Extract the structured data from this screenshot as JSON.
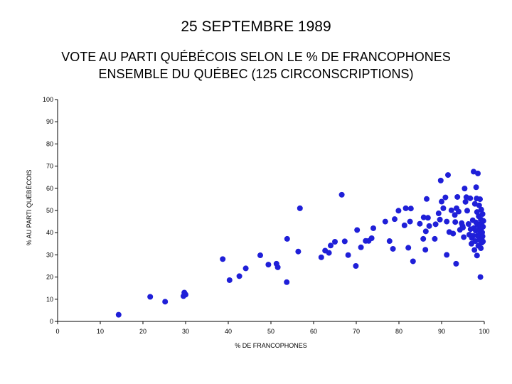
{
  "page": {
    "heading": "25 SEPTEMBRE 1989"
  },
  "chart_data": {
    "type": "scatter",
    "title_line1": "VOTE AU PARTI QUÉBÉCOIS SELON LE % DE FRANCOPHONES",
    "title_line2": "ENSEMBLE DU QUÉBEC (125 CIRCONSCRIPTIONS)",
    "xlabel": "% DE FRANCOPHONES",
    "ylabel": "% AU PARTI QUÉBÉCOIS",
    "xlim": [
      0,
      100
    ],
    "ylim": [
      0,
      100
    ],
    "xticks": [
      0,
      10,
      20,
      30,
      40,
      50,
      60,
      70,
      80,
      90,
      100
    ],
    "yticks": [
      0,
      10,
      20,
      30,
      40,
      50,
      60,
      70,
      80,
      90,
      100
    ],
    "grid": false,
    "marker_color": "#1f1fd8",
    "points": [
      [
        14.3,
        3.0
      ],
      [
        21.7,
        11.1
      ],
      [
        25.2,
        8.9
      ],
      [
        29.5,
        11.4
      ],
      [
        29.7,
        13.0
      ],
      [
        30.0,
        12.1
      ],
      [
        38.7,
        28.1
      ],
      [
        40.3,
        18.6
      ],
      [
        42.6,
        20.4
      ],
      [
        44.1,
        23.9
      ],
      [
        47.5,
        29.8
      ],
      [
        49.4,
        25.6
      ],
      [
        51.3,
        26.0
      ],
      [
        51.6,
        24.4
      ],
      [
        53.7,
        17.7
      ],
      [
        53.8,
        37.2
      ],
      [
        56.4,
        31.5
      ],
      [
        56.8,
        51.0
      ],
      [
        61.8,
        28.9
      ],
      [
        62.7,
        31.9
      ],
      [
        63.6,
        30.9
      ],
      [
        64.0,
        34.2
      ],
      [
        65.0,
        35.9
      ],
      [
        66.6,
        57.1
      ],
      [
        67.3,
        36.1
      ],
      [
        68.1,
        29.9
      ],
      [
        69.9,
        25.0
      ],
      [
        70.2,
        41.2
      ],
      [
        71.1,
        33.4
      ],
      [
        72.2,
        36.3
      ],
      [
        72.9,
        36.3
      ],
      [
        73.6,
        37.5
      ],
      [
        74.0,
        42.0
      ],
      [
        76.8,
        45.0
      ],
      [
        77.8,
        36.2
      ],
      [
        78.6,
        32.7
      ],
      [
        79.0,
        46.1
      ],
      [
        79.9,
        49.9
      ],
      [
        81.3,
        43.3
      ],
      [
        81.6,
        51.0
      ],
      [
        82.2,
        33.2
      ],
      [
        82.6,
        45.0
      ],
      [
        82.8,
        50.9
      ],
      [
        83.3,
        27.1
      ],
      [
        84.9,
        44.0
      ],
      [
        85.7,
        37.2
      ],
      [
        85.8,
        46.9
      ],
      [
        86.2,
        32.3
      ],
      [
        86.3,
        40.6
      ],
      [
        86.5,
        55.2
      ],
      [
        86.8,
        46.7
      ],
      [
        87.1,
        43.0
      ],
      [
        88.4,
        37.2
      ],
      [
        88.6,
        43.8
      ],
      [
        89.3,
        48.7
      ],
      [
        89.6,
        45.9
      ],
      [
        89.8,
        63.5
      ],
      [
        90.0,
        54.0
      ],
      [
        90.4,
        51.0
      ],
      [
        90.9,
        55.9
      ],
      [
        91.2,
        45.0
      ],
      [
        91.2,
        30.0
      ],
      [
        91.5,
        66.0
      ],
      [
        91.8,
        40.3
      ],
      [
        92.3,
        50.1
      ],
      [
        92.7,
        39.6
      ],
      [
        93.1,
        48.0
      ],
      [
        93.2,
        44.8
      ],
      [
        93.4,
        26.0
      ],
      [
        93.5,
        51.0
      ],
      [
        93.7,
        56.1
      ],
      [
        94.0,
        49.5
      ],
      [
        94.3,
        41.3
      ],
      [
        94.7,
        44.3
      ],
      [
        94.9,
        43.0
      ],
      [
        95.0,
        42.3
      ],
      [
        95.2,
        38.0
      ],
      [
        95.4,
        59.9
      ],
      [
        95.6,
        53.9
      ],
      [
        95.8,
        56.0
      ],
      [
        96.0,
        49.9
      ],
      [
        96.3,
        43.9
      ],
      [
        96.5,
        39.1
      ],
      [
        96.7,
        55.5
      ],
      [
        96.8,
        41.6
      ],
      [
        97.0,
        35.0
      ],
      [
        97.1,
        37.6
      ],
      [
        97.3,
        45.6
      ],
      [
        97.4,
        38.6
      ],
      [
        97.5,
        67.5
      ],
      [
        97.6,
        42.1
      ],
      [
        97.7,
        32.2
      ],
      [
        97.8,
        53.0
      ],
      [
        97.9,
        36.2
      ],
      [
        98.0,
        40.9
      ],
      [
        98.1,
        44.6
      ],
      [
        98.1,
        60.5
      ],
      [
        98.2,
        55.4
      ],
      [
        98.3,
        49.3
      ],
      [
        98.3,
        29.7
      ],
      [
        98.4,
        38.6
      ],
      [
        98.5,
        43.4
      ],
      [
        98.5,
        66.7
      ],
      [
        98.6,
        34.1
      ],
      [
        98.7,
        47.4
      ],
      [
        98.8,
        41.2
      ],
      [
        98.8,
        52.3
      ],
      [
        98.9,
        36.7
      ],
      [
        99.0,
        55.1
      ],
      [
        99.0,
        43.7
      ],
      [
        99.1,
        39.8
      ],
      [
        99.1,
        20.0
      ],
      [
        99.2,
        46.0
      ],
      [
        99.2,
        33.0
      ],
      [
        99.3,
        50.4
      ],
      [
        99.3,
        41.9
      ],
      [
        99.4,
        37.4
      ],
      [
        99.4,
        35.5
      ],
      [
        99.5,
        44.9
      ],
      [
        99.5,
        40.1
      ],
      [
        99.6,
        38.4
      ],
      [
        99.6,
        48.4
      ],
      [
        99.7,
        42.7
      ],
      [
        99.7,
        36.0
      ],
      [
        99.8,
        45.3
      ]
    ]
  }
}
